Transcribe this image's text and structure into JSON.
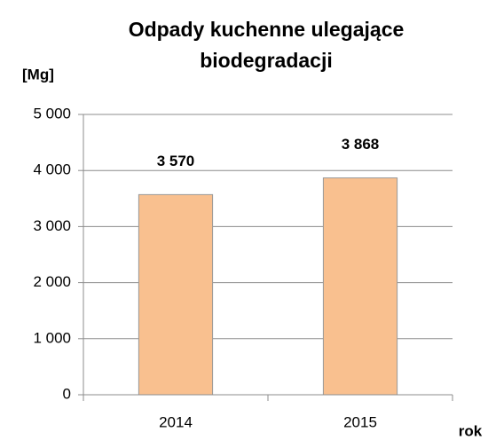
{
  "chart_data": {
    "type": "bar",
    "title": "Odpady kuchenne ulegające biodegradacji",
    "y_label": "[Mg]",
    "x_label": "rok",
    "categories": [
      "2014",
      "2015"
    ],
    "values": [
      3570,
      3868
    ],
    "value_labels": [
      "3 570",
      "3 868"
    ],
    "color": "#f9c08f",
    "ylim": [
      0,
      5000
    ],
    "yticks": [
      0,
      {
        "value": 1000,
        "label": "1 000"
      },
      {
        "value": 2000,
        "label": "2 000"
      },
      {
        "value": 3000,
        "label": "3 000"
      },
      {
        "value": 4000,
        "label": "4 000"
      },
      {
        "value": 5000,
        "label": "5 000"
      }
    ],
    "grid": true
  }
}
